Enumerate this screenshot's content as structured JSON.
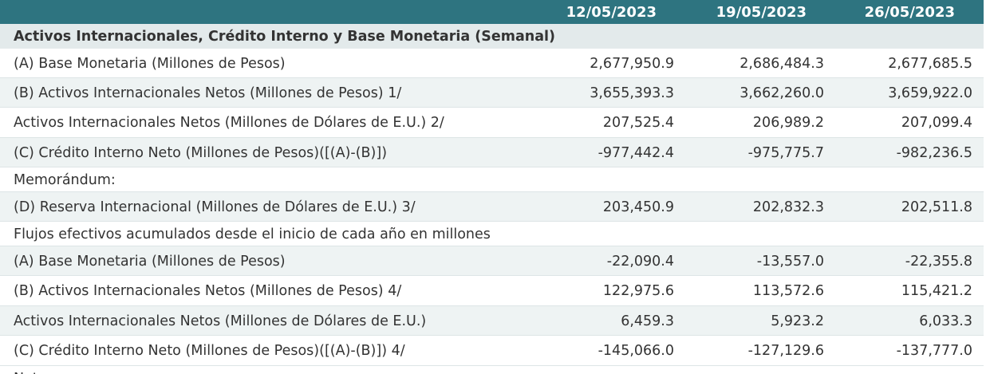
{
  "dates": [
    "12/05/2023",
    "19/05/2023",
    "26/05/2023"
  ],
  "section_title": "Activos Internacionales, Crédito Interno y Base Monetaria (Semanal)",
  "rows": [
    {
      "label": "(A) Base Monetaria (Millones de Pesos)",
      "values": [
        "2,677,950.9",
        "2,686,484.3",
        "2,677,685.5"
      ]
    },
    {
      "label": "(B) Activos Internacionales Netos (Millones de Pesos) 1/",
      "values": [
        "3,655,393.3",
        "3,662,260.0",
        "3,659,922.0"
      ]
    },
    {
      "label": "Activos Internacionales Netos (Millones de Dólares de E.U.) 2/",
      "values": [
        "207,525.4",
        "206,989.2",
        "207,099.4"
      ]
    },
    {
      "label": "(C) Crédito Interno Neto (Millones de Pesos)([(A)-(B)])",
      "values": [
        "-977,442.4",
        "-975,775.7",
        "-982,236.5"
      ]
    },
    {
      "label": "Memorándum:",
      "values": [
        "",
        "",
        ""
      ]
    },
    {
      "label": "(D) Reserva Internacional (Millones de Dólares de E.U.) 3/",
      "values": [
        "203,450.9",
        "202,832.3",
        "202,511.8"
      ]
    },
    {
      "label": "Flujos efectivos acumulados desde el inicio de cada año en millones",
      "values": [
        "",
        "",
        ""
      ]
    },
    {
      "label": "(A) Base Monetaria (Millones de Pesos)",
      "values": [
        "-22,090.4",
        "-13,557.0",
        "-22,355.8"
      ]
    },
    {
      "label": "(B) Activos Internacionales Netos (Millones de Pesos) 4/",
      "values": [
        "122,975.6",
        "113,572.6",
        "115,421.2"
      ]
    },
    {
      "label": "Activos Internacionales Netos (Millones de Dólares de E.U.)",
      "values": [
        "6,459.3",
        "5,923.2",
        "6,033.3"
      ]
    },
    {
      "label": "(C) Crédito Interno Neto (Millones de Pesos)([(A)-(B)]) 4/",
      "values": [
        "-145,066.0",
        "-127,129.6",
        "-137,777.0"
      ]
    },
    {
      "label": "Notas:",
      "values": [
        "",
        "",
        ""
      ]
    }
  ]
}
